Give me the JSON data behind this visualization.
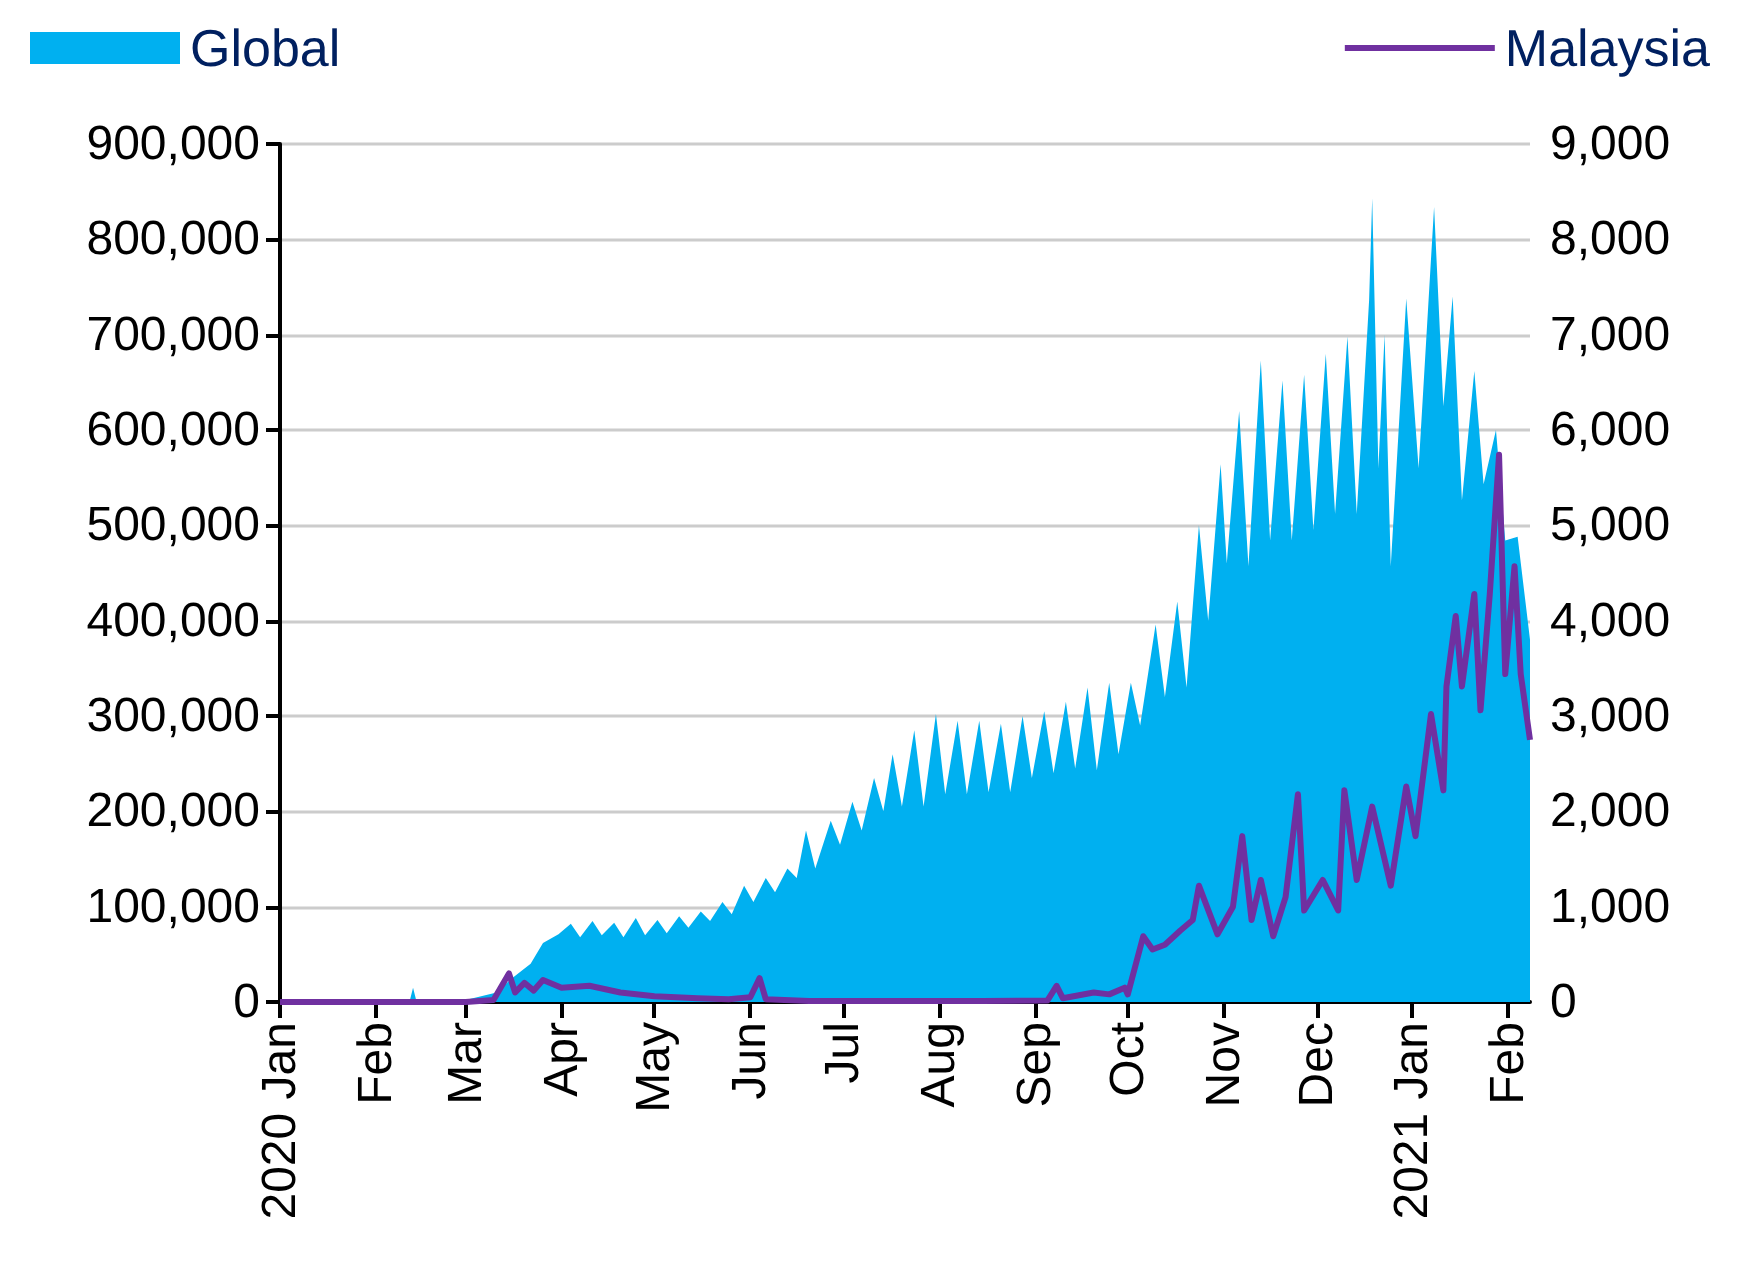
{
  "chart_data": {
    "type": "area",
    "xlim": [
      "2020-01-01",
      "2021-02-08"
    ],
    "xticks": [
      {
        "value": "2020-01-01",
        "label": "2020 Jan"
      },
      {
        "value": "2020-02-01",
        "label": "Feb"
      },
      {
        "value": "2020-03-01",
        "label": "Mar"
      },
      {
        "value": "2020-04-01",
        "label": "Apr"
      },
      {
        "value": "2020-05-01",
        "label": "May"
      },
      {
        "value": "2020-06-01",
        "label": "Jun"
      },
      {
        "value": "2020-07-01",
        "label": "Jul"
      },
      {
        "value": "2020-08-01",
        "label": "Aug"
      },
      {
        "value": "2020-09-01",
        "label": "Sep"
      },
      {
        "value": "2020-10-01",
        "label": "Oct"
      },
      {
        "value": "2020-11-01",
        "label": "Nov"
      },
      {
        "value": "2020-12-01",
        "label": "Dec"
      },
      {
        "value": "2021-01-01",
        "label": "2021 Jan"
      },
      {
        "value": "2021-02-01",
        "label": "Feb"
      }
    ],
    "ylim": [
      0,
      900000
    ],
    "yticks": [
      0,
      {
        "value": 100000,
        "label": "100,000"
      },
      {
        "value": 200000,
        "label": "200,000"
      },
      {
        "value": 300000,
        "label": "300,000"
      },
      {
        "value": 400000,
        "label": "400,000"
      },
      {
        "value": 500000,
        "label": "500,000"
      },
      {
        "value": 600000,
        "label": "600,000"
      },
      {
        "value": 700000,
        "label": "700,000"
      },
      {
        "value": 800000,
        "label": "800,000"
      },
      {
        "value": 900000,
        "label": "900,000"
      }
    ],
    "y2lim": [
      0,
      9000
    ],
    "y2ticks": [
      0,
      {
        "value": 1000,
        "label": "1,000"
      },
      {
        "value": 2000,
        "label": "2,000"
      },
      {
        "value": 3000,
        "label": "3,000"
      },
      {
        "value": 4000,
        "label": "4,000"
      },
      {
        "value": 5000,
        "label": "5,000"
      },
      {
        "value": 6000,
        "label": "6,000"
      },
      {
        "value": 7000,
        "label": "7,000"
      },
      {
        "value": 8000,
        "label": "8,000"
      },
      {
        "value": 9000,
        "label": "9,000"
      }
    ],
    "grid": "y",
    "legend": "top",
    "series": [
      {
        "name": "Global",
        "color": "#00b0f0",
        "x": [
          "2020-01-01",
          "2020-02-12",
          "2020-02-13",
          "2020-02-14",
          "2020-03-01",
          "2020-03-11",
          "2020-03-16",
          "2020-03-22",
          "2020-03-26",
          "2020-03-31",
          "2020-04-04",
          "2020-04-07",
          "2020-04-11",
          "2020-04-14",
          "2020-04-18",
          "2020-04-21",
          "2020-04-25",
          "2020-04-28",
          "2020-05-02",
          "2020-05-05",
          "2020-05-09",
          "2020-05-12",
          "2020-05-16",
          "2020-05-19",
          "2020-05-23",
          "2020-05-26",
          "2020-05-30",
          "2020-06-02",
          "2020-06-06",
          "2020-06-09",
          "2020-06-13",
          "2020-06-16",
          "2020-06-19",
          "2020-06-22",
          "2020-06-27",
          "2020-06-30",
          "2020-07-04",
          "2020-07-07",
          "2020-07-11",
          "2020-07-14",
          "2020-07-17",
          "2020-07-20",
          "2020-07-24",
          "2020-07-27",
          "2020-07-31",
          "2020-08-03",
          "2020-08-07",
          "2020-08-10",
          "2020-08-14",
          "2020-08-17",
          "2020-08-21",
          "2020-08-24",
          "2020-08-28",
          "2020-08-31",
          "2020-09-04",
          "2020-09-07",
          "2020-09-11",
          "2020-09-14",
          "2020-09-18",
          "2020-09-21",
          "2020-09-25",
          "2020-09-28",
          "2020-10-02",
          "2020-10-05",
          "2020-10-10",
          "2020-10-13",
          "2020-10-17",
          "2020-10-20",
          "2020-10-24",
          "2020-10-27",
          "2020-10-31",
          "2020-11-02",
          "2020-11-06",
          "2020-11-09",
          "2020-11-13",
          "2020-11-16",
          "2020-11-20",
          "2020-11-23",
          "2020-11-27",
          "2020-11-30",
          "2020-12-04",
          "2020-12-07",
          "2020-12-11",
          "2020-12-14",
          "2020-12-18",
          "2020-12-19",
          "2020-12-21",
          "2020-12-23",
          "2020-12-25",
          "2020-12-30",
          "2021-01-03",
          "2021-01-08",
          "2021-01-11",
          "2021-01-14",
          "2021-01-17",
          "2021-01-21",
          "2021-01-24",
          "2021-01-28",
          "2021-01-31",
          "2021-02-04",
          "2021-02-08"
        ],
        "values": [
          0,
          2000,
          15000,
          2000,
          2000,
          10000,
          25000,
          40000,
          62000,
          71000,
          82000,
          68000,
          85000,
          70000,
          83000,
          68000,
          88000,
          70000,
          86000,
          72000,
          90000,
          78000,
          95000,
          85000,
          105000,
          92000,
          122000,
          105000,
          130000,
          115000,
          140000,
          130000,
          180000,
          140000,
          190000,
          165000,
          210000,
          180000,
          235000,
          200000,
          260000,
          205000,
          285000,
          205000,
          302000,
          218000,
          295000,
          218000,
          295000,
          220000,
          292000,
          220000,
          300000,
          235000,
          305000,
          240000,
          315000,
          245000,
          330000,
          243000,
          335000,
          260000,
          335000,
          290000,
          396000,
          320000,
          420000,
          330000,
          500000,
          400000,
          564000,
          460000,
          620000,
          457000,
          673000,
          484000,
          652000,
          484000,
          658000,
          495000,
          680000,
          512000,
          698000,
          512000,
          736000,
          843000,
          560000,
          700000,
          457000,
          738000,
          560000,
          834000,
          625000,
          740000,
          526000,
          662000,
          543000,
          600000,
          484000,
          488000,
          380000
        ]
      },
      {
        "name": "Malaysia",
        "type": "line",
        "axis": "y2",
        "color": "#7030a0",
        "x": [
          "2020-01-01",
          "2020-03-01",
          "2020-03-10",
          "2020-03-15",
          "2020-03-17",
          "2020-03-20",
          "2020-03-23",
          "2020-03-26",
          "2020-04-01",
          "2020-04-10",
          "2020-04-20",
          "2020-05-01",
          "2020-05-15",
          "2020-05-25",
          "2020-06-01",
          "2020-06-04",
          "2020-06-06",
          "2020-06-20",
          "2020-07-15",
          "2020-08-15",
          "2020-09-05",
          "2020-09-08",
          "2020-09-10",
          "2020-09-20",
          "2020-09-25",
          "2020-09-30",
          "2020-10-01",
          "2020-10-06",
          "2020-10-09",
          "2020-10-13",
          "2020-10-18",
          "2020-10-22",
          "2020-10-24",
          "2020-10-30",
          "2020-11-04",
          "2020-11-07",
          "2020-11-10",
          "2020-11-13",
          "2020-11-17",
          "2020-11-21",
          "2020-11-25",
          "2020-11-27",
          "2020-12-03",
          "2020-12-08",
          "2020-12-10",
          "2020-12-14",
          "2020-12-19",
          "2020-12-25",
          "2020-12-30",
          "2021-01-02",
          "2021-01-07",
          "2021-01-11",
          "2021-01-12",
          "2021-01-15",
          "2021-01-17",
          "2021-01-21",
          "2021-01-23",
          "2021-01-26",
          "2021-01-29",
          "2021-01-31",
          "2021-02-03",
          "2021-02-05",
          "2021-02-08"
        ],
        "values": [
          0,
          0,
          20,
          300,
          100,
          200,
          120,
          230,
          150,
          170,
          100,
          60,
          40,
          30,
          50,
          250,
          30,
          10,
          10,
          10,
          15,
          170,
          40,
          100,
          80,
          150,
          80,
          690,
          550,
          600,
          750,
          860,
          1220,
          710,
          1000,
          1740,
          860,
          1280,
          690,
          1100,
          2180,
          960,
          1280,
          960,
          2220,
          1280,
          2050,
          1220,
          2260,
          1740,
          3020,
          2220,
          3310,
          4050,
          3310,
          4280,
          3060,
          4280,
          5740,
          3440,
          4570,
          3440,
          2750
        ]
      }
    ]
  }
}
